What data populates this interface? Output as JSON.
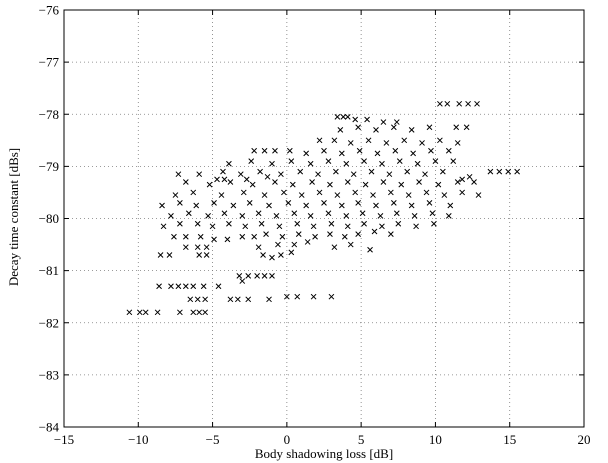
{
  "chart_data": {
    "type": "scatter",
    "title": "",
    "xlabel": "Body shadowing loss [dB]",
    "ylabel": "Decay time constant [dBs]",
    "xlim": [
      -15,
      20
    ],
    "ylim": [
      -84,
      -76
    ],
    "xticks": [
      -15,
      -10,
      -5,
      0,
      5,
      10,
      15,
      20
    ],
    "yticks": [
      -84,
      -83,
      -82,
      -81,
      -80,
      -79,
      -78,
      -77,
      -76
    ],
    "xtick_labels": [
      "−15",
      "−10",
      "−5",
      "0",
      "5",
      "10",
      "15",
      "20"
    ],
    "ytick_labels": [
      "−84",
      "−83",
      "−82",
      "−81",
      "−80",
      "−79",
      "−78",
      "−77",
      "−76"
    ],
    "grid": true,
    "marker": "x",
    "marker_color": "#000000",
    "series": [
      {
        "points": [
          [
            -10.6,
            -81.8
          ],
          [
            -9.9,
            -81.8
          ],
          [
            -9.5,
            -81.8
          ],
          [
            -8.7,
            -81.8
          ],
          [
            -7.2,
            -81.8
          ],
          [
            -6.3,
            -81.8
          ],
          [
            -5.9,
            -81.8
          ],
          [
            -5.5,
            -81.8
          ],
          [
            -8.6,
            -81.3
          ],
          [
            -7.8,
            -81.3
          ],
          [
            -7.3,
            -81.3
          ],
          [
            -6.8,
            -81.3
          ],
          [
            -6.3,
            -81.3
          ],
          [
            -5.6,
            -81.3
          ],
          [
            -4.6,
            -81.3
          ],
          [
            -6.5,
            -81.55
          ],
          [
            -6.0,
            -81.55
          ],
          [
            -5.5,
            -81.55
          ],
          [
            -3.8,
            -81.55
          ],
          [
            -3.3,
            -81.55
          ],
          [
            -2.6,
            -81.55
          ],
          [
            -1.2,
            -81.55
          ],
          [
            0.0,
            -81.5
          ],
          [
            0.7,
            -81.5
          ],
          [
            1.8,
            -81.5
          ],
          [
            3.0,
            -81.5
          ],
          [
            -3.2,
            -81.1
          ],
          [
            -2.6,
            -81.1
          ],
          [
            -2.0,
            -81.1
          ],
          [
            -1.5,
            -81.1
          ],
          [
            -1.0,
            -81.1
          ],
          [
            -3.0,
            -81.2
          ],
          [
            -8.5,
            -80.7
          ],
          [
            -7.9,
            -80.7
          ],
          [
            -5.9,
            -80.7
          ],
          [
            -5.4,
            -80.7
          ],
          [
            -1.6,
            -80.7
          ],
          [
            -1.0,
            -80.75
          ],
          [
            -0.4,
            -80.7
          ],
          [
            0.3,
            -80.65
          ],
          [
            -6.8,
            -80.55
          ],
          [
            -6.0,
            -80.55
          ],
          [
            -5.4,
            -80.55
          ],
          [
            -1.9,
            -80.55
          ],
          [
            -0.6,
            -80.5
          ],
          [
            0.5,
            -80.5
          ],
          [
            1.4,
            -80.45
          ],
          [
            3.2,
            -80.55
          ],
          [
            4.3,
            -80.5
          ],
          [
            5.6,
            -80.6
          ],
          [
            -7.6,
            -80.35
          ],
          [
            -6.8,
            -80.35
          ],
          [
            -5.8,
            -80.35
          ],
          [
            -4.9,
            -80.4
          ],
          [
            -4.0,
            -80.4
          ],
          [
            -3.0,
            -80.35
          ],
          [
            -2.2,
            -80.35
          ],
          [
            -1.4,
            -80.3
          ],
          [
            -0.3,
            -80.35
          ],
          [
            0.8,
            -80.3
          ],
          [
            1.9,
            -80.35
          ],
          [
            2.9,
            -80.3
          ],
          [
            3.9,
            -80.35
          ],
          [
            4.8,
            -80.3
          ],
          [
            5.9,
            -80.25
          ],
          [
            7.0,
            -80.3
          ],
          [
            -8.3,
            -80.15
          ],
          [
            -7.2,
            -80.1
          ],
          [
            -6.0,
            -80.1
          ],
          [
            -5.0,
            -80.15
          ],
          [
            -3.9,
            -80.1
          ],
          [
            -2.8,
            -80.15
          ],
          [
            -1.7,
            -80.1
          ],
          [
            -0.5,
            -80.15
          ],
          [
            0.7,
            -80.1
          ],
          [
            1.8,
            -80.15
          ],
          [
            3.0,
            -80.1
          ],
          [
            4.1,
            -80.15
          ],
          [
            5.2,
            -80.1
          ],
          [
            6.4,
            -80.15
          ],
          [
            7.5,
            -80.1
          ],
          [
            8.7,
            -80.15
          ],
          [
            9.9,
            -80.1
          ],
          [
            -7.8,
            -79.95
          ],
          [
            -6.6,
            -79.9
          ],
          [
            -5.3,
            -79.95
          ],
          [
            -4.2,
            -79.9
          ],
          [
            -3.0,
            -79.95
          ],
          [
            -1.9,
            -79.9
          ],
          [
            -0.7,
            -79.95
          ],
          [
            0.5,
            -79.9
          ],
          [
            1.6,
            -79.95
          ],
          [
            2.8,
            -79.9
          ],
          [
            4.0,
            -79.95
          ],
          [
            5.1,
            -79.9
          ],
          [
            6.3,
            -79.95
          ],
          [
            7.4,
            -79.9
          ],
          [
            8.6,
            -79.95
          ],
          [
            9.8,
            -79.9
          ],
          [
            10.9,
            -79.95
          ],
          [
            -8.4,
            -79.75
          ],
          [
            -7.2,
            -79.7
          ],
          [
            -6.1,
            -79.75
          ],
          [
            -4.9,
            -79.7
          ],
          [
            -3.6,
            -79.75
          ],
          [
            -2.5,
            -79.7
          ],
          [
            -1.2,
            -79.75
          ],
          [
            0.1,
            -79.7
          ],
          [
            1.3,
            -79.75
          ],
          [
            2.5,
            -79.7
          ],
          [
            3.7,
            -79.75
          ],
          [
            4.8,
            -79.7
          ],
          [
            6.0,
            -79.75
          ],
          [
            7.2,
            -79.7
          ],
          [
            8.4,
            -79.75
          ],
          [
            9.6,
            -79.7
          ],
          [
            11.0,
            -79.75
          ],
          [
            -7.5,
            -79.55
          ],
          [
            -6.3,
            -79.5
          ],
          [
            -4.4,
            -79.55
          ],
          [
            -2.9,
            -79.5
          ],
          [
            -1.5,
            -79.55
          ],
          [
            -0.2,
            -79.5
          ],
          [
            1.0,
            -79.55
          ],
          [
            2.2,
            -79.5
          ],
          [
            3.4,
            -79.55
          ],
          [
            4.6,
            -79.5
          ],
          [
            5.8,
            -79.55
          ],
          [
            7.0,
            -79.5
          ],
          [
            8.2,
            -79.55
          ],
          [
            9.4,
            -79.5
          ],
          [
            10.6,
            -79.55
          ],
          [
            11.8,
            -79.5
          ],
          [
            12.9,
            -79.55
          ],
          [
            -6.8,
            -79.3
          ],
          [
            -5.2,
            -79.35
          ],
          [
            -3.8,
            -79.3
          ],
          [
            -2.3,
            -79.35
          ],
          [
            -0.8,
            -79.3
          ],
          [
            0.4,
            -79.35
          ],
          [
            1.7,
            -79.3
          ],
          [
            2.9,
            -79.35
          ],
          [
            4.1,
            -79.3
          ],
          [
            5.3,
            -79.35
          ],
          [
            6.5,
            -79.3
          ],
          [
            7.7,
            -79.35
          ],
          [
            8.9,
            -79.3
          ],
          [
            10.2,
            -79.35
          ],
          [
            11.5,
            -79.3
          ],
          [
            12.6,
            -79.3
          ],
          [
            -7.3,
            -79.15
          ],
          [
            -5.9,
            -79.15
          ],
          [
            -4.3,
            -79.1
          ],
          [
            -3.1,
            -79.15
          ],
          [
            -1.8,
            -79.1
          ],
          [
            -0.4,
            -79.15
          ],
          [
            0.9,
            -79.1
          ],
          [
            2.1,
            -79.15
          ],
          [
            3.3,
            -79.1
          ],
          [
            4.5,
            -79.15
          ],
          [
            5.7,
            -79.1
          ],
          [
            6.9,
            -79.15
          ],
          [
            8.1,
            -79.1
          ],
          [
            9.3,
            -79.15
          ],
          [
            10.5,
            -79.1
          ],
          [
            13.7,
            -79.1
          ],
          [
            14.3,
            -79.1
          ],
          [
            14.9,
            -79.1
          ],
          [
            15.5,
            -79.1
          ],
          [
            -4.7,
            -79.25
          ],
          [
            -4.2,
            -79.25
          ],
          [
            -2.7,
            -79.25
          ],
          [
            -1.3,
            -79.2
          ],
          [
            11.8,
            -79.25
          ],
          [
            12.3,
            -79.2
          ],
          [
            -3.9,
            -78.95
          ],
          [
            -2.4,
            -78.9
          ],
          [
            -1.0,
            -78.95
          ],
          [
            0.3,
            -78.9
          ],
          [
            1.6,
            -78.95
          ],
          [
            2.8,
            -78.9
          ],
          [
            4.0,
            -78.95
          ],
          [
            5.2,
            -78.9
          ],
          [
            6.4,
            -78.95
          ],
          [
            7.6,
            -78.9
          ],
          [
            8.8,
            -78.95
          ],
          [
            10.0,
            -78.9
          ],
          [
            11.2,
            -78.9
          ],
          [
            -2.2,
            -78.7
          ],
          [
            -1.5,
            -78.7
          ],
          [
            -0.8,
            -78.7
          ],
          [
            0.2,
            -78.7
          ],
          [
            1.3,
            -78.75
          ],
          [
            2.5,
            -78.7
          ],
          [
            3.7,
            -78.75
          ],
          [
            4.9,
            -78.7
          ],
          [
            6.1,
            -78.75
          ],
          [
            7.3,
            -78.7
          ],
          [
            8.5,
            -78.75
          ],
          [
            9.7,
            -78.7
          ],
          [
            10.9,
            -78.7
          ],
          [
            2.2,
            -78.5
          ],
          [
            3.2,
            -78.5
          ],
          [
            4.3,
            -78.55
          ],
          [
            5.5,
            -78.5
          ],
          [
            6.7,
            -78.55
          ],
          [
            7.9,
            -78.5
          ],
          [
            9.1,
            -78.55
          ],
          [
            10.3,
            -78.5
          ],
          [
            11.5,
            -78.55
          ],
          [
            3.6,
            -78.3
          ],
          [
            4.8,
            -78.25
          ],
          [
            6.0,
            -78.3
          ],
          [
            7.2,
            -78.25
          ],
          [
            8.4,
            -78.3
          ],
          [
            9.6,
            -78.25
          ],
          [
            11.4,
            -78.25
          ],
          [
            12.1,
            -78.25
          ],
          [
            4.6,
            -78.1
          ],
          [
            5.4,
            -78.1
          ],
          [
            6.5,
            -78.15
          ],
          [
            7.4,
            -78.15
          ],
          [
            3.4,
            -78.05
          ],
          [
            3.8,
            -78.05
          ],
          [
            4.1,
            -78.05
          ],
          [
            10.3,
            -77.8
          ],
          [
            10.8,
            -77.8
          ],
          [
            11.6,
            -77.8
          ],
          [
            12.2,
            -77.8
          ],
          [
            12.8,
            -77.8
          ]
        ]
      }
    ]
  }
}
